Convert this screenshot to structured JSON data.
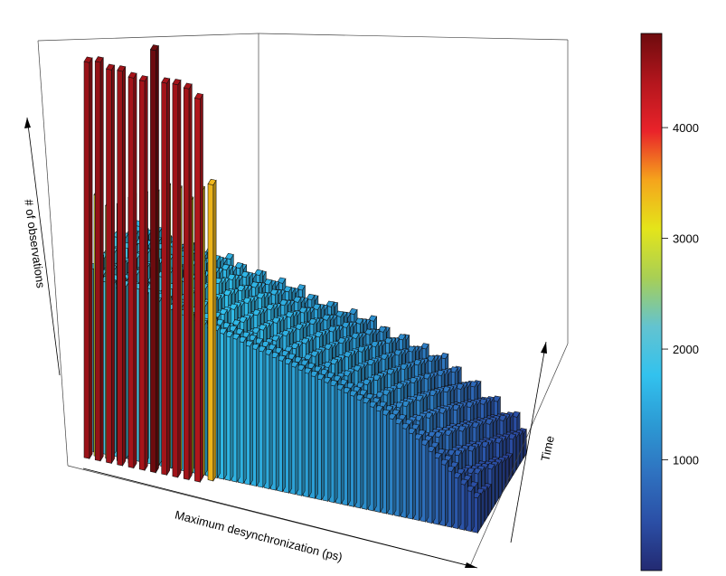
{
  "chart_data": {
    "type": "bar3d",
    "title": "",
    "xlabel": "Maximum desynchronization (ps)",
    "ylabel": "Time",
    "zlabel": "# of observations",
    "zlim": [
      0,
      4800
    ],
    "colorbar": {
      "ticks": [
        1000,
        2000,
        3000,
        4000
      ],
      "range": [
        0,
        4850
      ],
      "palette": [
        "#232a72",
        "#2b4fa6",
        "#2f72c0",
        "#2c9ad4",
        "#32c2ee",
        "#63c3d0",
        "#a8cf55",
        "#e4e51a",
        "#f5a41c",
        "#e9232a",
        "#b3161d",
        "#6e0b0e"
      ]
    },
    "grid": false,
    "depth_trend": [
      1,
      0.995,
      0.99,
      0.98,
      0.97,
      0.955,
      0.94,
      0.92,
      0.9,
      0.88,
      0.855,
      0.83
    ],
    "series": [
      {
        "values": [
          4550,
          4580,
          4520,
          4530,
          4480,
          4470,
          4850,
          4500,
          4510,
          4490,
          4400
        ]
      },
      {
        "values": [
          3000,
          2900,
          2950,
          3050,
          3100,
          3150,
          3250,
          3250,
          3150,
          3300,
          3400
        ]
      },
      {
        "values": [
          2100,
          2000,
          1980,
          1960,
          1940,
          1980,
          1920,
          1980,
          1900,
          2010,
          1870,
          1850,
          1820,
          1810,
          1790,
          1770,
          1750,
          1720,
          1700,
          1690,
          1670,
          1650,
          1640,
          1620,
          1590,
          1570,
          1560,
          1540,
          1520,
          1500,
          1480,
          1460,
          1440,
          1420,
          1400,
          1380,
          1360,
          1340,
          1310,
          1290,
          1270,
          1240,
          1220,
          1190,
          1160,
          1130,
          1100,
          1060,
          1020,
          980,
          930,
          880,
          820,
          760,
          700,
          640,
          580,
          520,
          460,
          400
        ]
      },
      {
        "values": [
          2000,
          1980,
          1960,
          1950,
          1940,
          1920,
          1920,
          1900,
          1880,
          1870,
          1850,
          1840,
          1820,
          1800,
          1790,
          1770,
          1750,
          1730,
          1710,
          1690,
          1670,
          1650,
          1630,
          1610,
          1590,
          1570,
          1550,
          1530,
          1510,
          1490,
          1470,
          1450,
          1430,
          1410,
          1390,
          1370,
          1350,
          1330,
          1300,
          1280,
          1250,
          1230,
          1200,
          1170,
          1140,
          1110,
          1080,
          1040,
          1000,
          960,
          910,
          860,
          800,
          740,
          680,
          620,
          560,
          500,
          440,
          380
        ]
      }
    ]
  }
}
